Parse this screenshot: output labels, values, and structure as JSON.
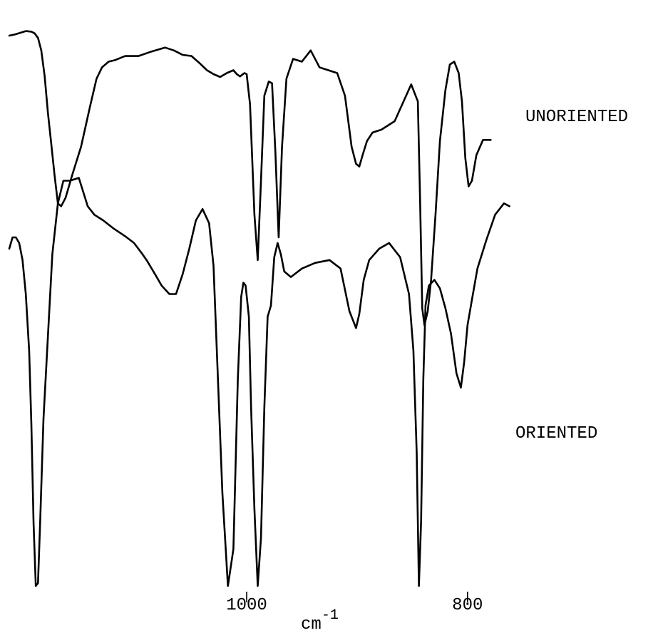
{
  "chart_data": {
    "type": "line",
    "title": "",
    "xlabel": "cm",
    "xlabel_superscript": "-1",
    "ylabel": "",
    "x_ticks": [
      1000,
      800
    ],
    "x_tick_labels": [
      "1000",
      "800"
    ],
    "xlim": [
      1215,
      765
    ],
    "x_reversed": true,
    "grid": false,
    "legend": "none",
    "series": [
      {
        "name": "UNORIENTED",
        "x": [
          1215,
          1210,
          1205,
          1200,
          1195,
          1192,
          1189,
          1186,
          1183,
          1180,
          1177,
          1174,
          1171,
          1168,
          1164,
          1158,
          1150,
          1142,
          1136,
          1131,
          1125,
          1119,
          1110,
          1098,
          1086,
          1074,
          1066,
          1058,
          1050,
          1043,
          1036,
          1030,
          1024,
          1018,
          1012,
          1009,
          1006,
          1004,
          1002,
          1000,
          997,
          993,
          990,
          987,
          984,
          980,
          977,
          974,
          971,
          968,
          964,
          958,
          950,
          942,
          934,
          926,
          918,
          911,
          905,
          901,
          898,
          895,
          891,
          886,
          878,
          866,
          851,
          845,
          843,
          841,
          839,
          836,
          833,
          829,
          825,
          820,
          816,
          812,
          808,
          805,
          802,
          799,
          796,
          792,
          786,
          779
        ],
        "y": [
          44,
          42,
          39,
          36,
          37,
          40,
          48,
          70,
          115,
          180,
          235,
          290,
          340,
          345,
          330,
          290,
          240,
          170,
          120,
          100,
          90,
          87,
          80,
          80,
          72,
          65,
          70,
          78,
          80,
          92,
          105,
          112,
          117,
          110,
          105,
          112,
          116,
          113,
          110,
          112,
          165,
          360,
          440,
          300,
          150,
          125,
          128,
          250,
          400,
          240,
          120,
          85,
          90,
          70,
          100,
          105,
          110,
          150,
          240,
          270,
          275,
          255,
          230,
          215,
          210,
          195,
          130,
          160,
          330,
          525,
          555,
          530,
          475,
          360,
          230,
          140,
          95,
          90,
          110,
          160,
          260,
          310,
          300,
          255,
          228,
          228
        ]
      },
      {
        "name": "ORIENTED",
        "x": [
          1215,
          1212,
          1209,
          1206,
          1203,
          1200,
          1197,
          1195,
          1193,
          1191,
          1189,
          1187,
          1184,
          1180,
          1176,
          1171,
          1166,
          1160,
          1152,
          1144,
          1138,
          1130,
          1120,
          1110,
          1102,
          1095,
          1090,
          1083,
          1077,
          1070,
          1064,
          1058,
          1052,
          1046,
          1040,
          1034,
          1030,
          1022,
          1017,
          1012,
          1008,
          1005,
          1003,
          1001,
          998,
          996,
          993,
          990,
          987,
          984,
          981,
          978,
          975,
          972,
          969,
          966,
          960,
          950,
          938,
          925,
          915,
          907,
          901,
          898,
          894,
          889,
          880,
          871,
          861,
          853,
          849,
          846,
          844,
          842,
          840,
          838,
          835,
          830,
          825,
          820,
          815,
          810,
          806,
          803,
          800,
          796,
          791,
          783,
          775,
          767,
          762
        ],
        "y": [
          420,
          400,
          400,
          410,
          440,
          500,
          600,
          730,
          905,
          1015,
          1010,
          900,
          720,
          575,
          430,
          340,
          300,
          300,
          295,
          345,
          360,
          370,
          385,
          398,
          410,
          428,
          442,
          465,
          485,
          500,
          500,
          465,
          420,
          370,
          350,
          375,
          450,
          850,
          1015,
          950,
          650,
          505,
          480,
          485,
          540,
          700,
          880,
          1015,
          930,
          700,
          540,
          520,
          435,
          410,
          430,
          460,
          470,
          455,
          445,
          440,
          455,
          530,
          560,
          535,
          475,
          440,
          420,
          410,
          435,
          500,
          600,
          780,
          1015,
          900,
          650,
          520,
          485,
          475,
          490,
          525,
          570,
          640,
          665,
          620,
          555,
          510,
          455,
          405,
          360,
          340,
          345
        ]
      }
    ],
    "annotations": [
      "UNORIENTED",
      "ORIENTED"
    ]
  }
}
